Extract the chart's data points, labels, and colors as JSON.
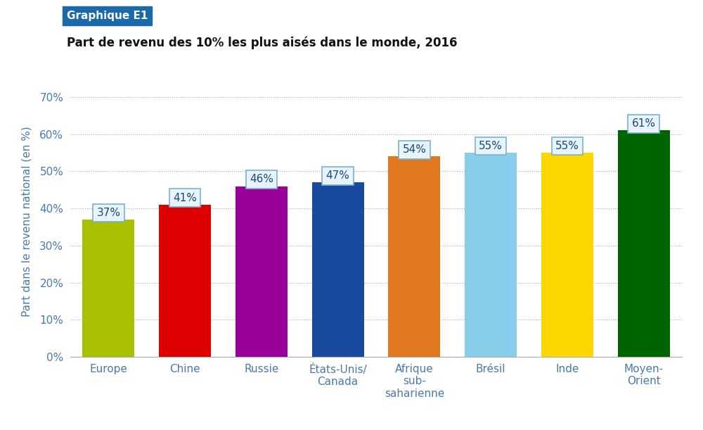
{
  "categories": [
    "Europe",
    "Chine",
    "Russie",
    "États-Unis/\nCanada",
    "Afrique\nsub-\nsaharienne",
    "Brésil",
    "Inde",
    "Moyen-\nOrient"
  ],
  "values": [
    37,
    41,
    46,
    47,
    54,
    55,
    55,
    61
  ],
  "bar_colors": [
    "#a8c000",
    "#dd0000",
    "#990099",
    "#1a4a9e",
    "#e07820",
    "#87ceeb",
    "#ffd700",
    "#006400"
  ],
  "title_box": "Graphique E1",
  "title_box_bg": "#1a6aaa",
  "title_box_text_color": "#ffffff",
  "subtitle": "Part de revenu des 10% les plus aisés dans le monde, 2016",
  "ylabel": "Part dans le revenu national (en %)",
  "yticks": [
    0,
    10,
    20,
    30,
    40,
    50,
    60,
    70
  ],
  "ytick_labels": [
    "0%",
    "10%",
    "20%",
    "30%",
    "40%",
    "50%",
    "60%",
    "70%"
  ],
  "ylim": [
    0,
    73
  ],
  "background_color": "#ffffff",
  "grid_color": "#aaaaaa",
  "label_box_facecolor": "#e8f4fb",
  "label_box_edgecolor": "#7ab0d0",
  "label_text_color": "#1a4a7a",
  "axis_label_color": "#4a7aaa",
  "ytick_color": "#4a7aaa"
}
